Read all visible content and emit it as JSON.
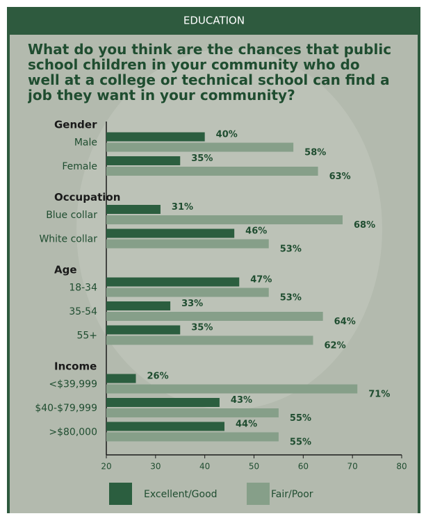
{
  "chart_data": {
    "type": "barh",
    "header": "EDUCATION",
    "title": "What do you think are the chances that public school children in your community who do well at a college or technical school can find a job they want in your community?",
    "groups": [
      {
        "name": "Gender",
        "categories": [
          "Male",
          "Female"
        ]
      },
      {
        "name": "Occupation",
        "categories": [
          "Blue collar",
          "White collar"
        ]
      },
      {
        "name": "Age",
        "categories": [
          "18-34",
          "35-54",
          "55+"
        ]
      },
      {
        "name": "Income",
        "categories": [
          "<$39,999",
          "$40-$79,999",
          ">$80,000"
        ]
      }
    ],
    "series": [
      {
        "name": "Excellent/Good",
        "color": "#2b5e3f",
        "values": [
          40,
          35,
          31,
          46,
          47,
          33,
          35,
          26,
          43,
          44
        ],
        "value_labels": [
          "40%",
          "35%",
          "31%",
          "46%",
          "47%",
          "33%",
          "35%",
          "26%",
          "43%",
          "44%"
        ]
      },
      {
        "name": "Fair/Poor",
        "color": "#869f89",
        "values": [
          58,
          63,
          68,
          53,
          53,
          64,
          62,
          71,
          55,
          55
        ],
        "value_labels": [
          "58%",
          "63%",
          "68%",
          "53%",
          "53%",
          "64%",
          "62%",
          "71%",
          "55%",
          "55%"
        ]
      }
    ],
    "xlim": [
      20,
      80
    ],
    "xticks": [
      20,
      30,
      40,
      50,
      60,
      70,
      80
    ]
  }
}
